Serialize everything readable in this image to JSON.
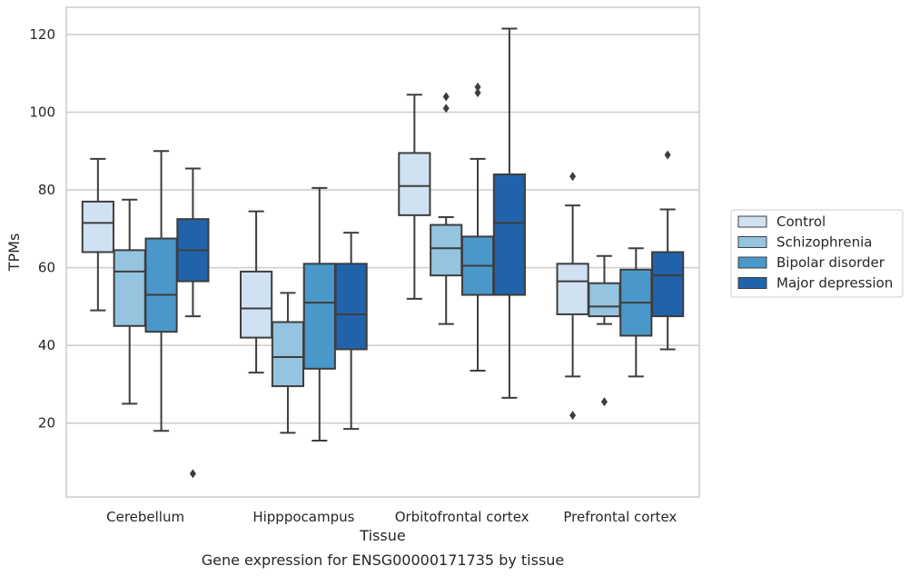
{
  "chart_data": {
    "type": "box",
    "caption": "Gene expression for ENSG00000171735 by tissue",
    "xlabel": "Tissue",
    "ylabel": "TPMs",
    "ylim": [
      1,
      127
    ],
    "yticks": [
      20,
      40,
      60,
      80,
      100,
      120
    ],
    "grid": "horizontal",
    "legend_position": "right",
    "categories": [
      "Cerebellum",
      "Hipppocampus",
      "Orbitofrontal cortex",
      "Prefrontal cortex"
    ],
    "series": [
      {
        "name": "Control",
        "color": "#d0e1f2",
        "boxes": [
          {
            "whislo": 49,
            "q1": 64,
            "med": 71.5,
            "q3": 77,
            "whishi": 88,
            "fliers": []
          },
          {
            "whislo": 33,
            "q1": 42,
            "med": 49.5,
            "q3": 59,
            "whishi": 74.5,
            "fliers": []
          },
          {
            "whislo": 52,
            "q1": 73.5,
            "med": 81,
            "q3": 89.5,
            "whishi": 104.5,
            "fliers": []
          },
          {
            "whislo": 32,
            "q1": 48,
            "med": 56.5,
            "q3": 61,
            "whishi": 76,
            "fliers": [
              22,
              83.5
            ]
          }
        ]
      },
      {
        "name": "Schizophrenia",
        "color": "#94c4df",
        "boxes": [
          {
            "whislo": 25,
            "q1": 45,
            "med": 59,
            "q3": 64.5,
            "whishi": 77.5,
            "fliers": []
          },
          {
            "whislo": 17.5,
            "q1": 29.5,
            "med": 37,
            "q3": 46,
            "whishi": 53.5,
            "fliers": []
          },
          {
            "whislo": 45.5,
            "q1": 58,
            "med": 65,
            "q3": 71,
            "whishi": 73,
            "fliers": [
              101,
              104
            ]
          },
          {
            "whislo": 45.5,
            "q1": 47.5,
            "med": 50,
            "q3": 56,
            "whishi": 63,
            "fliers": [
              25.5
            ]
          }
        ]
      },
      {
        "name": "Bipolar disorder",
        "color": "#4a98c9",
        "boxes": [
          {
            "whislo": 18,
            "q1": 43.5,
            "med": 53,
            "q3": 67.5,
            "whishi": 90,
            "fliers": []
          },
          {
            "whislo": 15.5,
            "q1": 34,
            "med": 51,
            "q3": 61,
            "whishi": 80.5,
            "fliers": []
          },
          {
            "whislo": 33.5,
            "q1": 53,
            "med": 60.5,
            "q3": 68,
            "whishi": 88,
            "fliers": [
              105,
              106.5
            ]
          },
          {
            "whislo": 32,
            "q1": 42.5,
            "med": 51,
            "q3": 59.5,
            "whishi": 65,
            "fliers": []
          }
        ]
      },
      {
        "name": "Major depression",
        "color": "#2163aa",
        "boxes": [
          {
            "whislo": 47.5,
            "q1": 56.5,
            "med": 64.5,
            "q3": 72.5,
            "whishi": 85.5,
            "fliers": [
              7
            ]
          },
          {
            "whislo": 18.5,
            "q1": 39,
            "med": 48,
            "q3": 61,
            "whishi": 69,
            "fliers": []
          },
          {
            "whislo": 26.5,
            "q1": 53,
            "med": 71.5,
            "q3": 84,
            "whishi": 121.5,
            "fliers": []
          },
          {
            "whislo": 39,
            "q1": 47.5,
            "med": 58,
            "q3": 64,
            "whishi": 75,
            "fliers": [
              89
            ]
          }
        ]
      }
    ]
  }
}
